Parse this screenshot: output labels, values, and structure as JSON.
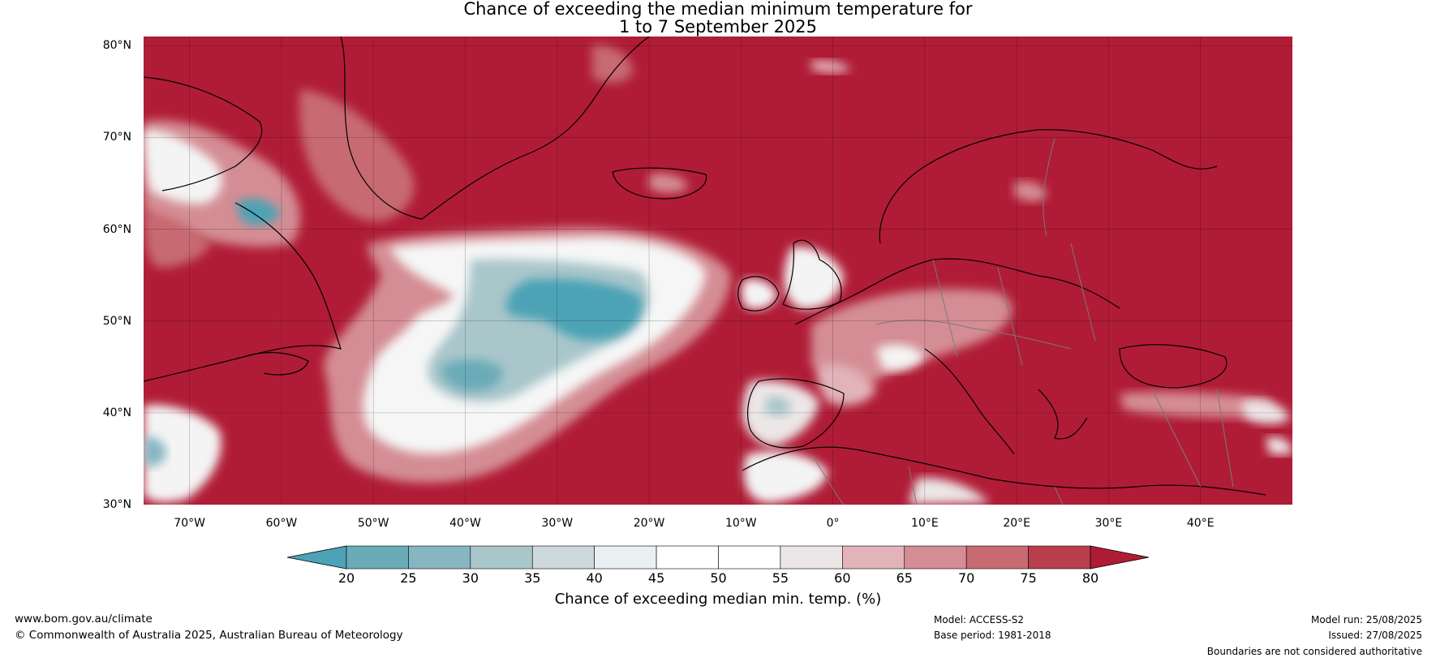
{
  "title": {
    "line1": "Chance of exceeding the median minimum temperature for",
    "line2": "1 to 7 September 2025"
  },
  "map": {
    "lat_labels": [
      "80°N",
      "70°N",
      "60°N",
      "50°N",
      "40°N",
      "30°N"
    ],
    "lon_labels": [
      "70°W",
      "60°W",
      "50°W",
      "40°W",
      "30°W",
      "20°W",
      "10°W",
      "0°",
      "10°E",
      "20°E",
      "30°E",
      "40°E"
    ],
    "extent": {
      "lon_min": -75,
      "lon_max": 50,
      "lat_min": 30,
      "lat_max": 81
    },
    "gridlines": true
  },
  "colorbar": {
    "ticks": [
      "20",
      "25",
      "30",
      "35",
      "40",
      "45",
      "50",
      "55",
      "60",
      "65",
      "70",
      "75",
      "80"
    ],
    "colors": [
      "#4ba3b5",
      "#6aabb8",
      "#87b5c1",
      "#a9c6cb",
      "#cdd9dc",
      "#e9f0f1",
      "#ffffff",
      "#ffffff",
      "#ece6e7",
      "#e2b4ba",
      "#d48d94",
      "#c76a72",
      "#ba3f4c",
      "#b01c36"
    ],
    "label": "Chance of exceeding median min. temp. (%)"
  },
  "footer": {
    "website": "www.bom.gov.au/climate",
    "copyright": "© Commonwealth of Australia 2025, Australian Bureau of Meteorology",
    "model": "Model: ACCESS-S2",
    "base_period": "Base period: 1981-2018",
    "model_run": "Model run: 25/08/2025",
    "issued": "Issued: 27/08/2025",
    "disclaimer": "Boundaries are not considered authoritative"
  }
}
